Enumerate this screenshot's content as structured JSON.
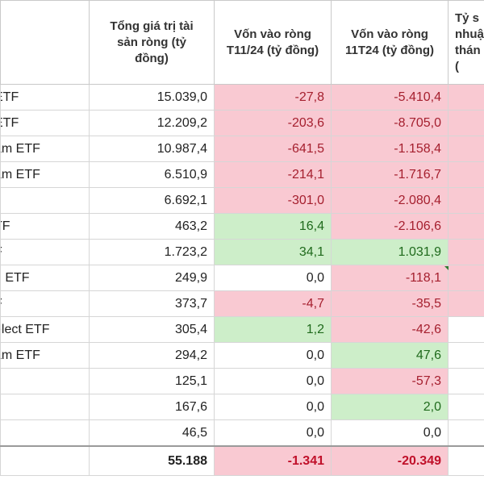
{
  "headers": [
    "",
    "Tổng giá trị tài\nsản ròng (tỷ\nđồng)",
    "Vốn vào ròng\nT11/24 (tỷ đồng)",
    "Vốn vào ròng\n11T24 (tỷ đồng)",
    "Tỷ s\nnhuậ\nthán\n("
  ],
  "rows": [
    {
      "name": "ETF",
      "nav": "15.039,0",
      "t11": "-27,8",
      "t11_tone": "neg",
      "ytd": "-5.410,4",
      "ytd_tone": "neg",
      "last_tone": "pink"
    },
    {
      "name": "ETF",
      "nav": "12.209,2",
      "t11": "-203,6",
      "t11_tone": "neg",
      "ytd": "-8.705,0",
      "ytd_tone": "neg",
      "last_tone": "pink"
    },
    {
      "name": "am ETF",
      "nav": "10.987,4",
      "t11": "-641,5",
      "t11_tone": "neg",
      "ytd": "-1.158,4",
      "ytd_tone": "neg",
      "last_tone": "pink"
    },
    {
      "name": "am ETF",
      "nav": "6.510,9",
      "t11": "-214,1",
      "t11_tone": "neg",
      "ytd": "-1.716,7",
      "ytd_tone": "neg",
      "last_tone": "pink"
    },
    {
      "name": "",
      "nav": "6.692,1",
      "t11": "-301,0",
      "t11_tone": "neg",
      "ytd": "-2.080,4",
      "ytd_tone": "neg",
      "last_tone": "pink"
    },
    {
      "name": "TF",
      "nav": "463,2",
      "t11": "16,4",
      "t11_tone": "pos",
      "ytd": "-2.106,6",
      "ytd_tone": "neg",
      "last_tone": "pink"
    },
    {
      "name": "F",
      "nav": "1.723,2",
      "t11": "34,1",
      "t11_tone": "pos",
      "ytd": "1.031,9",
      "ytd_tone": "pos",
      "last_tone": "pink"
    },
    {
      "name": "n ETF",
      "nav": "249,9",
      "t11": "0,0",
      "t11_tone": "",
      "ytd": "-118,1",
      "ytd_tone": "neg",
      "last_tone": "pink"
    },
    {
      "name": "F",
      "nav": "373,7",
      "t11": "-4,7",
      "t11_tone": "neg",
      "ytd": "-35,5",
      "ytd_tone": "neg",
      "last_tone": "pink"
    },
    {
      "name": "elect ETF",
      "nav": "305,4",
      "t11": "1,2",
      "t11_tone": "pos",
      "ytd": "-42,6",
      "ytd_tone": "neg",
      "last_tone": ""
    },
    {
      "name": "am ETF",
      "nav": "294,2",
      "t11": "0,0",
      "t11_tone": "",
      "ytd": "47,6",
      "ytd_tone": "pos",
      "last_tone": ""
    },
    {
      "name": "",
      "nav": "125,1",
      "t11": "0,0",
      "t11_tone": "",
      "ytd": "-57,3",
      "ytd_tone": "neg",
      "last_tone": ""
    },
    {
      "name": "",
      "nav": "167,6",
      "t11": "0,0",
      "t11_tone": "",
      "ytd": "2,0",
      "ytd_tone": "pos",
      "last_tone": ""
    },
    {
      "name": "",
      "nav": "46,5",
      "t11": "0,0",
      "t11_tone": "",
      "ytd": "0,0",
      "ytd_tone": "",
      "last_tone": ""
    }
  ],
  "total": {
    "name": "",
    "nav": "55.188",
    "t11": "-1.341",
    "t11_tone": "neg",
    "ytd": "-20.349",
    "ytd_tone": "neg",
    "last_tone": ""
  },
  "colors": {
    "negative_fill": "#f9c9d2",
    "positive_fill": "#cdeec9",
    "negative_text": "#a51f2e",
    "positive_text": "#1f6a1c"
  }
}
